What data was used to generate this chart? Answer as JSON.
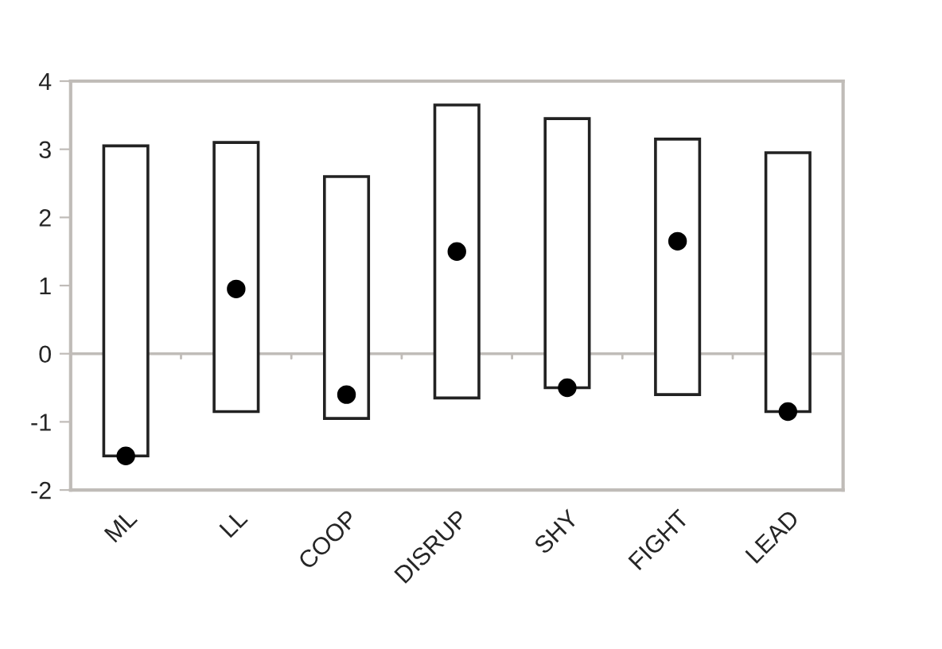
{
  "chart_data": {
    "type": "bar",
    "categories": [
      "ML",
      "LL",
      "COOP",
      "DISRUP",
      "SHY",
      "FIGHT",
      "LEAD"
    ],
    "series": [
      {
        "color": "#ffffff",
        "base": [
          -1.5,
          -0.85,
          -0.95,
          -0.65,
          -0.5,
          -0.6,
          -0.85
        ],
        "values": [
          4.55,
          3.95,
          3.55,
          4.3,
          3.95,
          3.75,
          3.8
        ]
      },
      {
        "type": "scatter",
        "color": "#000000",
        "x": [
          "ML",
          "LL",
          "COOP",
          "DISRUP",
          "SHY",
          "FIGHT",
          "LEAD"
        ],
        "values": [
          -1.5,
          0.95,
          -0.6,
          1.5,
          -0.5,
          1.65,
          -0.85
        ],
        "marker": "circle"
      }
    ],
    "ylim": [
      -2,
      4
    ],
    "yticks": [
      -2,
      -1,
      0,
      1,
      2,
      3,
      4
    ],
    "ref_lines": [
      {
        "axis": "y",
        "value": 0,
        "color": "#c0bcb8"
      }
    ],
    "grid": false,
    "legend": false
  }
}
